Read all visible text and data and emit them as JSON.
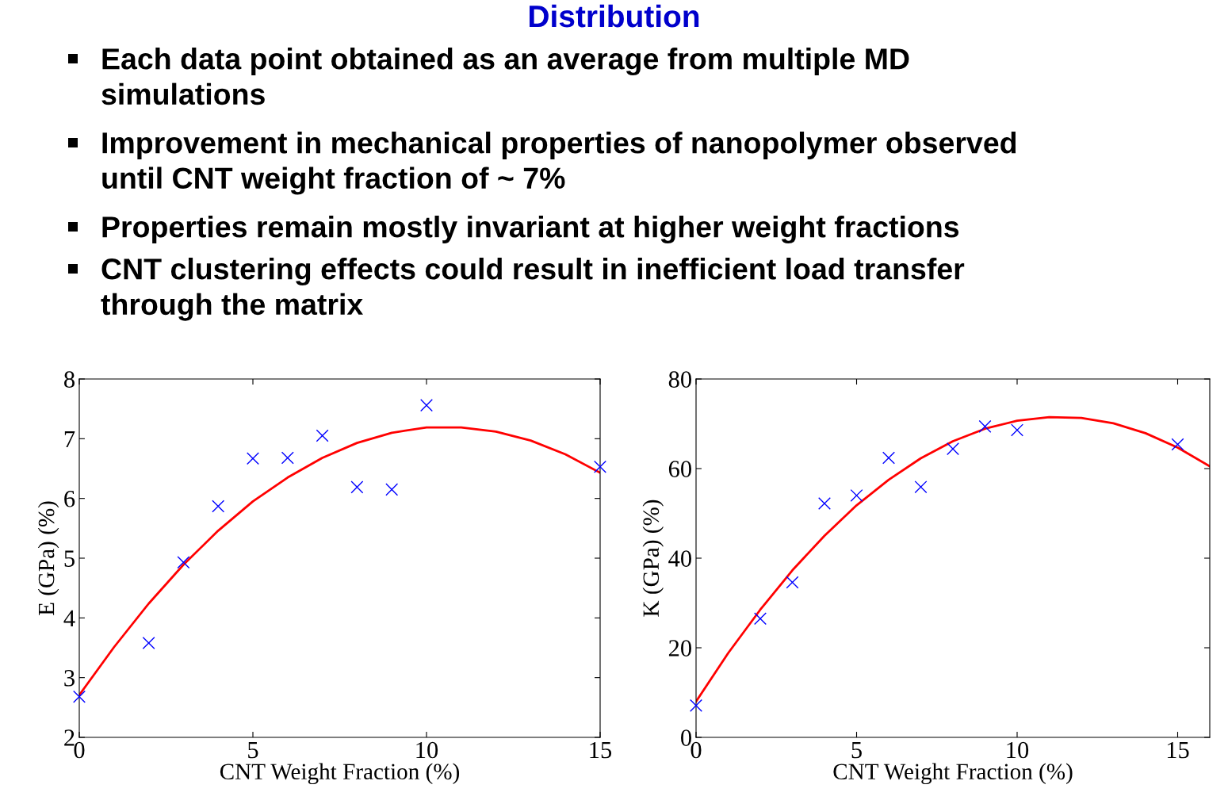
{
  "chart_data": [
    {
      "type": "scatter",
      "title": "Distribution",
      "xlabel": "CNT Weight Fraction (%)",
      "ylabel": "E (GPa) (%)",
      "annotations": [
        "Each data point obtained as an average from multiple MD\nsimulations",
        "Improvement in mechanical properties of nanopolymer observed\nuntil CNT weight fraction of ~ 7%",
        "Properties remain mostly invariant at higher weight fractions",
        "CNT clustering effects could result in inefficient load transfer\nthrough the matrix"
      ],
      "xlim": [
        0,
        15
      ],
      "xticks": [
        0,
        5,
        10,
        15
      ],
      "ylim": [
        2,
        8
      ],
      "yticks": [
        2,
        3,
        4,
        5,
        6,
        7,
        8
      ],
      "grid": false,
      "legend": false,
      "series": [
        {
          "color": "#0000ff",
          "marker": "cross",
          "x": [
            0,
            2,
            3,
            4,
            5,
            6,
            7,
            8,
            9,
            10,
            15
          ],
          "values": [
            2.68,
            3.58,
            4.93,
            5.87,
            6.67,
            6.68,
            7.05,
            6.19,
            6.15,
            7.56,
            6.53
          ]
        },
        {
          "type": "line",
          "color": "#ff0000",
          "marker": "none",
          "line_style": "solid",
          "x": [
            0,
            1,
            2,
            3,
            4,
            5,
            6,
            7,
            8,
            9,
            10,
            11,
            12,
            13,
            14,
            15
          ],
          "values": [
            2.71,
            3.51,
            4.24,
            4.89,
            5.46,
            5.95,
            6.35,
            6.68,
            6.93,
            7.1,
            7.19,
            7.19,
            7.12,
            6.97,
            6.74,
            6.43
          ]
        }
      ]
    },
    {
      "type": "scatter",
      "xlabel": "CNT Weight Fraction (%)",
      "ylabel": "K (GPa) (%)",
      "xlim": [
        0,
        16
      ],
      "xticks": [
        0,
        5,
        10,
        15
      ],
      "ylim": [
        0,
        80
      ],
      "yticks": [
        0,
        20,
        40,
        60,
        80
      ],
      "grid": false,
      "legend": false,
      "series": [
        {
          "color": "#0000ff",
          "marker": "cross",
          "x": [
            0,
            2,
            3,
            4,
            5,
            6,
            7,
            8,
            9,
            10,
            15
          ],
          "values": [
            7.1,
            26.5,
            34.6,
            52.2,
            54,
            62.4,
            55.9,
            64.4,
            69.4,
            68.6,
            65.4
          ]
        },
        {
          "type": "line",
          "color": "#ff0000",
          "marker": "none",
          "line_style": "solid",
          "x": [
            0,
            1,
            2,
            3,
            4,
            5,
            6,
            7,
            8,
            9,
            10,
            11,
            12,
            13,
            14,
            15,
            16
          ],
          "values": [
            8,
            18.8,
            28.5,
            37.3,
            45,
            51.8,
            57.5,
            62.3,
            66.1,
            68.9,
            70.7,
            71.5,
            71.3,
            70.1,
            67.9,
            64.7,
            60.5
          ]
        }
      ]
    }
  ]
}
